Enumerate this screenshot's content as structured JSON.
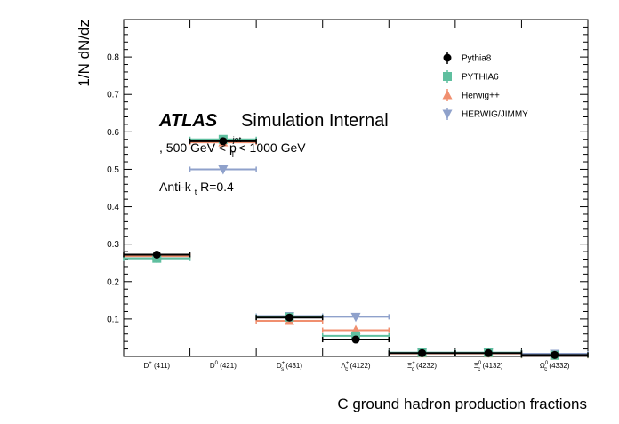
{
  "chart_data": {
    "type": "scatter",
    "title": "",
    "xlabel": "C ground hadron production fractions",
    "ylabel": "1/N dN/dz",
    "ylim": [
      0,
      0.9
    ],
    "yticks": [
      "0.1",
      "0.2",
      "0.3",
      "0.4",
      "0.5",
      "0.6",
      "0.7",
      "0.8"
    ],
    "categories": [
      {
        "name": "D",
        "sup": "+",
        "sub": "",
        "mass": " (411)"
      },
      {
        "name": "D",
        "sup": "0",
        "sub": "",
        "mass": " (421)"
      },
      {
        "name": "D",
        "sup": "+",
        "sub": "s",
        "mass": " (431)"
      },
      {
        "name": "Λ",
        "sup": "+",
        "sub": "c",
        "mass": " (4122)"
      },
      {
        "name": "Ξ",
        "sup": "+",
        "sub": "c",
        "mass": " (4232)"
      },
      {
        "name": "Ξ",
        "sup": "0",
        "sub": "c",
        "mass": " (4132)"
      },
      {
        "name": "Ω",
        "sup": "0",
        "sub": "c",
        "mass": " (4332)"
      }
    ],
    "series": [
      {
        "name": "Pythia8",
        "color": "#000000",
        "marker": "circle",
        "values": [
          0.272,
          0.575,
          0.104,
          0.045,
          0.009,
          0.009,
          0.004
        ]
      },
      {
        "name": "PYTHIA6",
        "color": "#5fbf9f",
        "marker": "square",
        "values": [
          0.262,
          0.58,
          0.105,
          0.055,
          0.01,
          0.01,
          0.003
        ]
      },
      {
        "name": "Herwig++",
        "color": "#f08f6f",
        "marker": "triangle-up",
        "values": [
          0.268,
          0.572,
          0.095,
          0.07,
          0.008,
          0.008,
          0.002
        ]
      },
      {
        "name": "HERWIG/JIMMY",
        "color": "#8fa1cb",
        "marker": "triangle-down",
        "values": [
          0.262,
          0.5,
          0.108,
          0.106,
          0.01,
          0.01,
          0.007
        ]
      }
    ],
    "legend_position": "top-right",
    "grid": false
  },
  "labels": {
    "atlas": "ATLAS",
    "status": "Simulation Internal",
    "cut_prefix": ", 500 GeV < p",
    "cut_sup": "jet",
    "cut_sub": "T",
    "cut_suffix": " < 1000 GeV",
    "algo_prefix": "Anti-k",
    "algo_sub": "t",
    "algo_suffix": " R=0.4"
  }
}
